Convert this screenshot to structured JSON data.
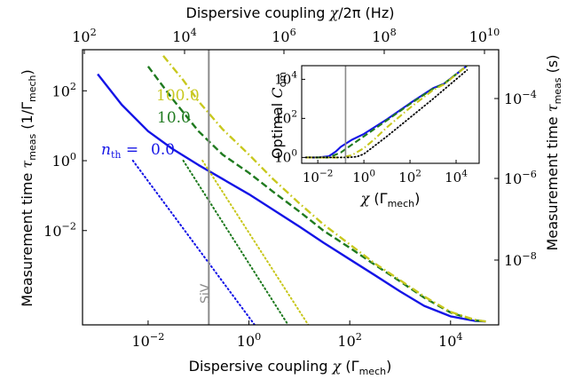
{
  "chart_data": [
    {
      "type": "line",
      "xlabel": "Dispersive coupling χ (Γ_mech)",
      "ylabel": "Measurement time τ_meas (1/Γ_mech)",
      "xscale": "log",
      "yscale": "log",
      "xlim": [
        0.0005,
        90000
      ],
      "ylim": [
        2e-05,
        1500
      ],
      "x_ticks": [
        "10^-2",
        "10^0",
        "10^2",
        "10^4"
      ],
      "y_ticks": [
        "10^-2",
        "10^0",
        "10^2"
      ],
      "top_axis": {
        "label": "Dispersive coupling χ/2π (Hz)",
        "ticks": [
          "10^2",
          "10^4",
          "10^6",
          "10^8",
          "10^10"
        ]
      },
      "right_axis": {
        "label": "Measurement time τ_meas (s)",
        "ticks": [
          "10^-4",
          "10^-6",
          "10^-8"
        ]
      },
      "vline": {
        "x": 0.16,
        "label": "SiV"
      },
      "series": [
        {
          "name": "0.0",
          "label": "n_th = 0.0",
          "color": "#1414e6",
          "style": "solid",
          "x": [
            0.001,
            0.003,
            0.01,
            0.03,
            0.1,
            0.3,
            1,
            3,
            10,
            30,
            100,
            300,
            1000,
            3000,
            10000,
            30000,
            50000
          ],
          "y": [
            300,
            40,
            7,
            2.2,
            0.75,
            0.3,
            0.11,
            0.04,
            0.013,
            0.0045,
            0.0015,
            0.00055,
            0.00018,
            7e-05,
            3.5e-05,
            2.6e-05,
            2.5e-05
          ]
        },
        {
          "name": "10.0",
          "color": "#1f7a1f",
          "style": "dashed",
          "x": [
            0.01,
            0.03,
            0.1,
            0.3,
            1,
            3,
            10,
            30,
            100,
            300,
            1000,
            3000,
            10000,
            30000,
            50000
          ],
          "y": [
            500,
            60,
            7,
            1.5,
            0.45,
            0.13,
            0.035,
            0.01,
            0.0032,
            0.0011,
            0.00035,
            0.00012,
            4.5e-05,
            2.7e-05,
            2.5e-05
          ]
        },
        {
          "name": "100.0",
          "color": "#c8c81e",
          "style": "dashdot",
          "x": [
            0.02,
            0.05,
            0.1,
            0.3,
            1,
            3,
            10,
            30,
            100,
            300,
            1000,
            3000,
            10000,
            30000,
            50000
          ],
          "y": [
            1000,
            200,
            50,
            8,
            1.5,
            0.3,
            0.06,
            0.015,
            0.004,
            0.0012,
            0.00038,
            0.00013,
            4.7e-05,
            2.8e-05,
            2.5e-05
          ]
        },
        {
          "name": "0.0 (asymptote)",
          "color": "#1414e6",
          "style": "dotted",
          "x": [
            0.005,
            1.3
          ],
          "y": [
            1,
            2e-05
          ]
        },
        {
          "name": "10.0 (asymptote)",
          "color": "#1f7a1f",
          "style": "dotted",
          "x": [
            0.05,
            6
          ],
          "y": [
            1,
            2e-05
          ]
        },
        {
          "name": "100.0 (asymptote)",
          "color": "#c8c81e",
          "style": "dotted",
          "x": [
            0.12,
            15
          ],
          "y": [
            1,
            2e-05
          ]
        }
      ]
    },
    {
      "type": "line",
      "xlabel": "χ (Γ_mech)",
      "ylabel": "Optimal C_om",
      "xscale": "log",
      "yscale": "log",
      "xlim": [
        0.002,
        100000
      ],
      "ylim": [
        0.5,
        50000
      ],
      "x_ticks": [
        "10^-2",
        "10^0",
        "10^2",
        "10^4"
      ],
      "y_ticks": [
        "10^0",
        "10^2",
        "10^4"
      ],
      "vline": {
        "x": 0.16
      },
      "series": [
        {
          "name": "n_th = 0.0",
          "color": "#1414e6",
          "style": "solid",
          "x": [
            0.003,
            0.01,
            0.03,
            0.06,
            0.1,
            0.3,
            1,
            10,
            100,
            1000,
            3000,
            30000
          ],
          "y": [
            1,
            1,
            1.15,
            2,
            3.5,
            8,
            16,
            90,
            600,
            3500,
            6000,
            50000
          ]
        },
        {
          "name": "10.0",
          "color": "#1f7a1f",
          "style": "dashed",
          "x": [
            0.003,
            0.03,
            0.1,
            0.3,
            1,
            10,
            100,
            1000,
            3000,
            30000
          ],
          "y": [
            1,
            1,
            1.8,
            4.5,
            12,
            80,
            550,
            3300,
            6000,
            50000
          ]
        },
        {
          "name": "100.0",
          "color": "#c8c81e",
          "style": "dashdot",
          "x": [
            0.003,
            0.1,
            0.3,
            1,
            3,
            10,
            100,
            1000,
            3000,
            30000
          ],
          "y": [
            1,
            1,
            1.3,
            3,
            9,
            35,
            350,
            2800,
            5500,
            50000
          ]
        },
        {
          "name": "reference",
          "color": "#000000",
          "style": "dotted",
          "x": [
            0.003,
            0.2,
            0.5,
            1,
            10,
            100,
            1000,
            30000
          ],
          "y": [
            1,
            1,
            1.1,
            1.5,
            12,
            110,
            1000,
            30000
          ]
        }
      ]
    }
  ]
}
